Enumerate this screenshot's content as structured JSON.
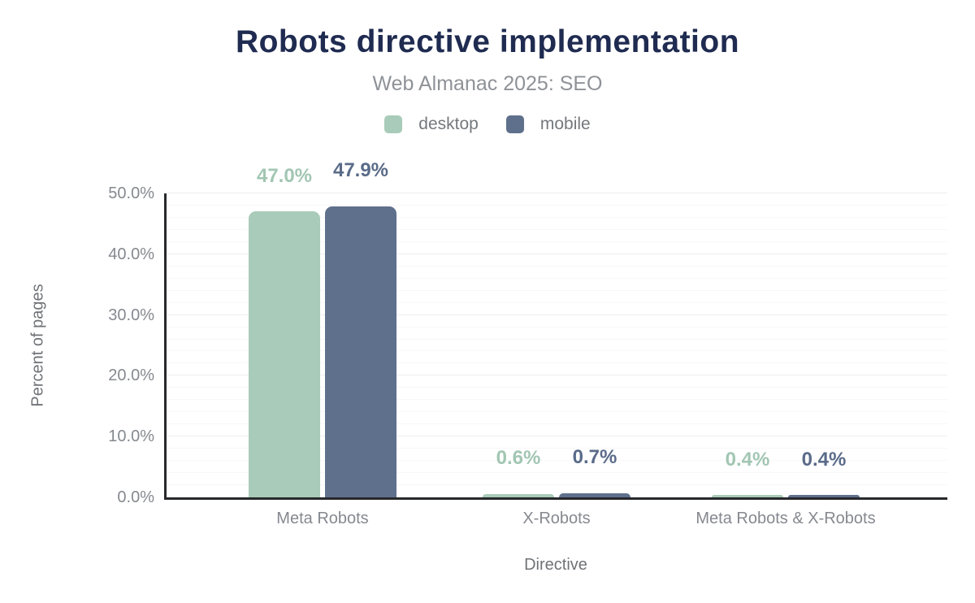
{
  "chart_data": {
    "type": "bar",
    "title": "Robots directive implementation",
    "subtitle": "Web Almanac 2025: SEO",
    "xlabel": "Directive",
    "ylabel": "Percent of pages",
    "categories": [
      "Meta Robots",
      "X-Robots",
      "Meta Robots & X-Robots"
    ],
    "series": [
      {
        "name": "desktop",
        "color": "#a9cbb9",
        "label_color": "#a2c6b3",
        "values": [
          47.0,
          0.6,
          0.4
        ],
        "value_labels": [
          "47.0%",
          "0.6%",
          "0.4%"
        ]
      },
      {
        "name": "mobile",
        "color": "#5f708c",
        "label_color": "#5a6b89",
        "values": [
          47.9,
          0.7,
          0.4
        ],
        "value_labels": [
          "47.9%",
          "0.7%",
          "0.4%"
        ]
      }
    ],
    "ylim": [
      0,
      50
    ],
    "yticks": {
      "values": [
        0,
        10,
        20,
        30,
        40,
        50
      ],
      "labels": [
        "0.0%",
        "10.0%",
        "20.0%",
        "30.0%",
        "40.0%",
        "50.0%"
      ]
    },
    "grid": {
      "minor_step": 2,
      "major_step": 10
    },
    "legend_position": "top"
  },
  "colors": {
    "background": "#ffffff",
    "title": "#1f2b50",
    "subtitle": "#8e9297",
    "legend_text": "#74787d",
    "tick_label": "#85898f",
    "axis_title": "#6f7377",
    "axis_line": "#26282b",
    "grid_minor": "#f7f7f7",
    "grid_major": "#ededed"
  }
}
